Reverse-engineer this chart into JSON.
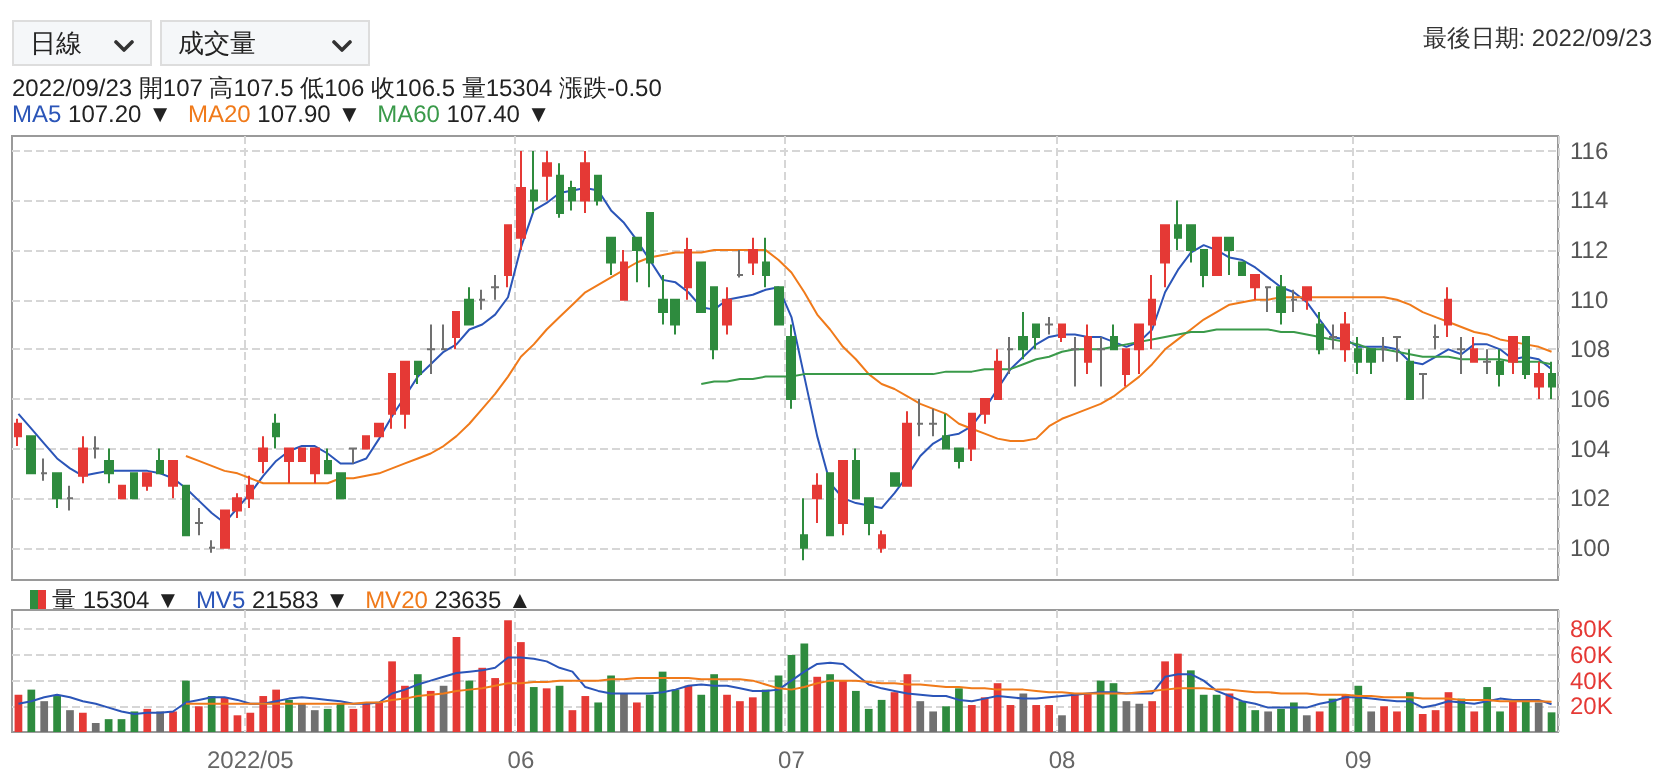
{
  "chart_data": [
    {
      "type": "candlestick",
      "subtitle": "2022/09/23 開107 高107.5 低106 收106.5 量15304 漲跌-0.50",
      "annotations": [
        "日線",
        "成交量",
        "最後日期: 2022/09/23",
        "107.20 ▼",
        "107.90 ▼",
        "107.40 ▼"
      ],
      "categories": [
        null,
        null,
        null,
        null,
        null,
        null,
        null,
        null,
        null,
        null,
        null,
        null,
        null,
        null,
        null,
        null,
        null,
        null,
        "2022/05",
        null,
        null,
        null,
        null,
        null,
        null,
        null,
        null,
        null,
        null,
        null,
        null,
        null,
        null,
        null,
        null,
        null,
        null,
        null,
        null,
        "06",
        null,
        null,
        null,
        null,
        null,
        null,
        null,
        null,
        null,
        null,
        null,
        null,
        null,
        null,
        null,
        null,
        null,
        null,
        null,
        null,
        "07",
        null,
        null,
        null,
        null,
        null,
        null,
        null,
        null,
        null,
        null,
        null,
        null,
        null,
        null,
        null,
        null,
        null,
        null,
        null,
        null,
        "08",
        null,
        null,
        null,
        null,
        null,
        null,
        null,
        null,
        null,
        null,
        null,
        null,
        null,
        null,
        null,
        null,
        null,
        null,
        null,
        null,
        null,
        null,
        "09",
        null,
        null,
        null,
        null,
        null,
        null,
        null,
        null,
        null,
        null,
        null,
        null,
        null,
        null,
        null
      ],
      "ylim": [
        98.7,
        116.6
      ],
      "yticks": [
        100,
        102,
        104,
        106,
        108,
        110,
        112,
        114,
        116
      ],
      "grid": true,
      "legend": "top left",
      "tick_labels": "y",
      "series": [
        {
          "ohlc": [
            [
              104.5,
              105.2,
              104.1,
              105
            ],
            [
              104.5,
              104.5,
              103,
              103
            ],
            [
              103,
              103.6,
              102.7,
              103
            ],
            [
              103,
              103,
              101.6,
              102
            ],
            [
              102,
              102.5,
              101.5,
              102
            ],
            [
              102.9,
              104.5,
              102.6,
              104
            ],
            [
              104,
              104.5,
              103.6,
              104
            ],
            [
              103.5,
              104,
              102.6,
              103
            ],
            [
              102,
              102.5,
              102,
              102.5
            ],
            [
              103,
              103,
              102,
              102
            ],
            [
              102.5,
              103,
              102.3,
              103
            ],
            [
              103.5,
              104,
              103,
              103
            ],
            [
              102.5,
              103.5,
              102,
              103.5
            ],
            [
              102.5,
              102.5,
              100.5,
              100.5
            ],
            [
              101,
              101.6,
              100.5,
              101
            ],
            [
              100,
              100.3,
              99.8,
              100
            ],
            [
              100,
              101.5,
              100,
              101.5
            ],
            [
              101.5,
              102.2,
              101.2,
              102
            ],
            [
              102,
              102.9,
              101.6,
              102.5
            ],
            [
              103.5,
              104.5,
              103,
              104
            ],
            [
              105,
              105.4,
              104,
              104.5
            ],
            [
              103.5,
              104,
              102.6,
              104
            ],
            [
              103.5,
              104,
              103.5,
              104
            ],
            [
              103,
              104,
              102.6,
              104
            ],
            [
              103.5,
              104,
              103,
              103
            ],
            [
              103,
              103,
              102,
              102
            ],
            [
              104,
              104,
              103.4,
              104
            ],
            [
              104,
              104.5,
              104,
              104.5
            ],
            [
              104.5,
              105,
              104.5,
              105
            ],
            [
              105.4,
              107,
              104.8,
              107
            ],
            [
              105.4,
              107.5,
              104.8,
              107.5
            ],
            [
              107.5,
              107.5,
              106.6,
              107
            ],
            [
              108,
              109,
              107,
              108
            ],
            [
              108,
              109,
              108,
              108
            ],
            [
              108.5,
              109.5,
              108,
              109.5
            ],
            [
              110,
              110.5,
              109,
              109
            ],
            [
              110,
              110.4,
              109.6,
              110
            ],
            [
              110.5,
              111,
              110,
              110.5
            ],
            [
              111,
              113,
              110.5,
              113
            ],
            [
              112.5,
              116,
              112,
              114.5
            ],
            [
              114.4,
              116,
              113.5,
              114
            ],
            [
              115,
              116,
              114,
              115.5
            ],
            [
              115,
              115.5,
              113.3,
              113.5
            ],
            [
              114.5,
              114.8,
              113.6,
              114
            ],
            [
              114,
              116,
              113.5,
              115.5
            ],
            [
              115,
              115,
              113.8,
              114
            ],
            [
              112.5,
              112.5,
              111,
              111.5
            ],
            [
              110,
              112,
              110,
              111.5
            ],
            [
              112.5,
              112.5,
              110.7,
              112
            ],
            [
              113.5,
              113.5,
              110.5,
              111.5
            ],
            [
              110,
              111,
              109,
              109.5
            ],
            [
              110,
              110,
              108.6,
              109
            ],
            [
              110.5,
              112.5,
              110,
              112
            ],
            [
              111.5,
              111.5,
              109.5,
              109.5
            ],
            [
              110.5,
              110.5,
              107.6,
              108
            ],
            [
              109,
              110.5,
              108.6,
              110
            ],
            [
              111,
              112,
              110.9,
              111
            ],
            [
              111.5,
              112.5,
              111,
              112
            ],
            [
              111.5,
              112.5,
              110.5,
              111
            ],
            [
              110.5,
              110.5,
              109,
              109
            ],
            [
              108.5,
              109,
              105.6,
              106
            ],
            [
              100.5,
              102,
              99.5,
              100
            ],
            [
              102,
              103,
              101,
              102.5
            ],
            [
              103,
              103,
              100.5,
              100.5
            ],
            [
              101,
              103.5,
              100.5,
              103.5
            ],
            [
              103.5,
              104,
              102,
              102
            ],
            [
              102,
              102,
              100.5,
              101
            ],
            [
              100,
              100.7,
              99.8,
              100.5
            ],
            [
              103,
              103,
              102.5,
              102.5
            ],
            [
              102.5,
              105.5,
              102.5,
              105
            ],
            [
              105,
              106,
              104.5,
              105
            ],
            [
              105,
              105.6,
              104.5,
              105
            ],
            [
              104.5,
              105.4,
              104,
              104
            ],
            [
              104,
              104,
              103.2,
              103.5
            ],
            [
              104,
              105.4,
              103.5,
              105.4
            ],
            [
              105.4,
              106,
              105,
              106
            ],
            [
              106,
              108,
              106,
              107.5
            ],
            [
              108,
              108.5,
              107,
              108
            ],
            [
              108.5,
              109.5,
              107.6,
              108
            ],
            [
              109,
              109,
              108,
              108.5
            ],
            [
              109,
              109.3,
              108.6,
              109
            ],
            [
              108.5,
              109,
              108.3,
              109
            ],
            [
              108,
              108.5,
              106.5,
              108
            ],
            [
              107.5,
              109,
              107,
              108.5
            ],
            [
              108,
              108.5,
              106.5,
              108
            ],
            [
              108.5,
              109,
              108,
              108
            ],
            [
              107,
              108,
              106.5,
              108
            ],
            [
              108,
              109,
              107,
              109
            ],
            [
              109,
              111,
              108,
              110
            ],
            [
              111.5,
              113,
              110.5,
              113
            ],
            [
              113,
              114,
              112,
              112.5
            ],
            [
              113,
              113,
              111.5,
              112
            ],
            [
              112,
              112,
              110.5,
              111
            ],
            [
              111,
              112.5,
              111,
              112.5
            ],
            [
              112.5,
              112.5,
              111,
              112
            ],
            [
              111.5,
              111.5,
              111,
              111
            ],
            [
              110.5,
              111,
              110,
              111
            ],
            [
              110.5,
              110.5,
              109.5,
              110.5
            ],
            [
              110.5,
              111,
              109,
              109.5
            ],
            [
              110,
              110.4,
              109.5,
              110
            ],
            [
              110,
              110.5,
              109.6,
              110.5
            ],
            [
              109,
              109.5,
              107.8,
              108
            ],
            [
              108.5,
              109,
              108,
              108.5
            ],
            [
              108,
              109.5,
              107.5,
              109
            ],
            [
              108,
              108.5,
              107,
              107.5
            ],
            [
              108,
              108,
              107,
              107.5
            ],
            [
              108,
              108.5,
              107.5,
              108
            ],
            [
              108.5,
              108.5,
              107.5,
              108.5
            ],
            [
              107.5,
              108,
              106,
              106
            ],
            [
              107,
              107,
              106,
              107
            ],
            [
              108.5,
              109,
              108,
              108.5
            ],
            [
              109,
              110.5,
              108.5,
              110
            ],
            [
              108,
              108.5,
              107,
              108
            ],
            [
              107.5,
              108.5,
              107.5,
              108
            ],
            [
              107.5,
              108,
              107,
              107.5
            ],
            [
              107.5,
              108,
              106.5,
              107
            ],
            [
              107.5,
              108.5,
              107,
              108.5
            ],
            [
              108.5,
              108.5,
              106.8,
              107
            ],
            [
              106.5,
              107.5,
              106,
              107
            ],
            [
              107,
              107.5,
              106,
              106.5
            ]
          ],
          "colors": [
            "#e53935",
            "#2e8b3e",
            "#707070",
            "#2e8b3e",
            "#707070",
            "#e53935",
            "#707070",
            "#2e8b3e",
            "#e53935",
            "#2e8b3e",
            "#e53935",
            "#2e8b3e",
            "#e53935",
            "#2e8b3e",
            "#707070",
            "#707070",
            "#e53935",
            "#e53935",
            "#e53935",
            "#e53935",
            "#2e8b3e",
            "#e53935",
            "#e53935",
            "#e53935",
            "#2e8b3e",
            "#2e8b3e",
            "#707070",
            "#e53935",
            "#e53935",
            "#e53935",
            "#e53935",
            "#2e8b3e",
            "#707070",
            "#707070",
            "#e53935",
            "#2e8b3e",
            "#707070",
            "#707070",
            "#e53935",
            "#e53935",
            "#2e8b3e",
            "#e53935",
            "#2e8b3e",
            "#2e8b3e",
            "#e53935",
            "#2e8b3e",
            "#2e8b3e",
            "#e53935",
            "#2e8b3e",
            "#2e8b3e",
            "#2e8b3e",
            "#2e8b3e",
            "#e53935",
            "#2e8b3e",
            "#2e8b3e",
            "#e53935",
            "#707070",
            "#e53935",
            "#2e8b3e",
            "#2e8b3e",
            "#2e8b3e",
            "#2e8b3e",
            "#e53935",
            "#2e8b3e",
            "#e53935",
            "#2e8b3e",
            "#2e8b3e",
            "#e53935",
            "#2e8b3e",
            "#e53935",
            "#707070",
            "#707070",
            "#2e8b3e",
            "#2e8b3e",
            "#e53935",
            "#e53935",
            "#e53935",
            "#707070",
            "#2e8b3e",
            "#2e8b3e",
            "#707070",
            "#e53935",
            "#707070",
            "#e53935",
            "#707070",
            "#2e8b3e",
            "#e53935",
            "#e53935",
            "#e53935",
            "#e53935",
            "#2e8b3e",
            "#2e8b3e",
            "#2e8b3e",
            "#e53935",
            "#2e8b3e",
            "#2e8b3e",
            "#e53935",
            "#707070",
            "#2e8b3e",
            "#707070",
            "#e53935",
            "#2e8b3e",
            "#707070",
            "#e53935",
            "#2e8b3e",
            "#2e8b3e",
            "#707070",
            "#707070",
            "#2e8b3e",
            "#707070",
            "#707070",
            "#e53935",
            "#707070",
            "#e53935",
            "#707070",
            "#2e8b3e",
            "#e53935",
            "#2e8b3e",
            "#e53935",
            "#2e8b3e"
          ]
        },
        {
          "type": "line",
          "name": "MA5",
          "color": "#2b55b8",
          "values": [
            105.4,
            104.8,
            104.2,
            103.6,
            103.2,
            102.9,
            103.0,
            103.1,
            103.1,
            103.1,
            103.1,
            103.0,
            102.8,
            102.4,
            101.9,
            101.4,
            101.0,
            101.6,
            102.2,
            102.9,
            103.5,
            103.9,
            104.1,
            104.1,
            103.8,
            103.4,
            103.4,
            103.6,
            104.4,
            105.3,
            106.1,
            106.9,
            107.4,
            107.9,
            108.2,
            108.8,
            109.0,
            109.4,
            110.1,
            112.1,
            113.6,
            113.9,
            114.3,
            114.4,
            114.5,
            114.4,
            113.6,
            113.1,
            112.4,
            111.6,
            110.8,
            110.7,
            110.3,
            109.7,
            109.6,
            110.0,
            110.1,
            110.2,
            110.4,
            110.5,
            109.3,
            106.9,
            104.5,
            102.6,
            102.0,
            101.8,
            101.7,
            101.6,
            102.2,
            102.9,
            103.7,
            104.2,
            104.5,
            104.6,
            104.9,
            105.6,
            106.4,
            107.2,
            107.7,
            108.2,
            108.5,
            108.6,
            108.6,
            108.5,
            108.5,
            108.3,
            108.1,
            108.3,
            108.8,
            110.3,
            111.2,
            111.9,
            112.2,
            112.0,
            111.7,
            111.6,
            111.3,
            110.9,
            110.5,
            110.3,
            109.9,
            109.2,
            108.5,
            108.4,
            108.1,
            108.1,
            108.1,
            108.0,
            107.5,
            107.4,
            107.7,
            108.0,
            107.8,
            108.2,
            108.2,
            108.0,
            107.6,
            107.7,
            107.6,
            107.2
          ]
        },
        {
          "type": "line",
          "name": "MA20",
          "color": "#f07a1a",
          "values": [
            null,
            null,
            null,
            null,
            null,
            null,
            null,
            null,
            null,
            null,
            null,
            null,
            null,
            103.7,
            103.5,
            103.3,
            103.1,
            103.0,
            102.8,
            102.6,
            102.6,
            102.6,
            102.6,
            102.6,
            102.6,
            102.8,
            102.8,
            102.9,
            103.0,
            103.2,
            103.4,
            103.6,
            103.8,
            104.1,
            104.5,
            105.0,
            105.6,
            106.2,
            106.9,
            107.7,
            108.2,
            108.8,
            109.3,
            109.8,
            110.3,
            110.6,
            110.9,
            111.2,
            111.5,
            111.7,
            111.8,
            111.9,
            111.9,
            111.9,
            112.0,
            112.0,
            112.0,
            112.0,
            112.0,
            111.6,
            111.1,
            110.3,
            109.4,
            108.8,
            108.1,
            107.6,
            107.0,
            106.6,
            106.4,
            106.1,
            105.8,
            105.6,
            105.4,
            105.0,
            104.8,
            104.6,
            104.4,
            104.3,
            104.3,
            104.4,
            104.9,
            105.2,
            105.4,
            105.6,
            105.8,
            106.1,
            106.5,
            106.9,
            107.4,
            108.0,
            108.4,
            108.8,
            109.2,
            109.5,
            109.8,
            109.9,
            110.0,
            110.0,
            110.1,
            110.1,
            110.1,
            110.1,
            110.1,
            110.1,
            110.1,
            110.1,
            110.1,
            110.0,
            109.8,
            109.5,
            109.3,
            109.1,
            108.9,
            108.7,
            108.6,
            108.4,
            108.3,
            108.2,
            108.1,
            107.9
          ]
        },
        {
          "type": "line",
          "name": "MA60",
          "color": "#3a9a4a",
          "values": [
            null,
            null,
            null,
            null,
            null,
            null,
            null,
            null,
            null,
            null,
            null,
            null,
            null,
            null,
            null,
            null,
            null,
            null,
            null,
            null,
            null,
            null,
            null,
            null,
            null,
            null,
            null,
            null,
            null,
            null,
            null,
            null,
            null,
            null,
            null,
            null,
            null,
            null,
            null,
            null,
            null,
            null,
            null,
            null,
            null,
            null,
            null,
            null,
            null,
            null,
            null,
            null,
            null,
            106.6,
            106.7,
            106.7,
            106.8,
            106.8,
            106.9,
            106.9,
            106.9,
            107.0,
            107.0,
            107.0,
            107.0,
            107.0,
            107.0,
            107.0,
            107.0,
            107.0,
            107.0,
            107.0,
            107.1,
            107.1,
            107.1,
            107.2,
            107.2,
            107.2,
            107.4,
            107.6,
            107.7,
            107.9,
            108.0,
            108.0,
            108.0,
            108.1,
            108.2,
            108.3,
            108.4,
            108.5,
            108.6,
            108.7,
            108.7,
            108.8,
            108.8,
            108.8,
            108.8,
            108.8,
            108.7,
            108.7,
            108.6,
            108.5,
            108.4,
            108.3,
            108.2,
            108.0,
            108.0,
            107.9,
            107.8,
            107.7,
            107.7,
            107.7,
            107.6,
            107.6,
            107.6,
            107.6,
            107.5,
            107.5,
            107.5,
            107.4
          ]
        }
      ]
    },
    {
      "type": "bar",
      "annotations": [
        "15304 ▼",
        "21583 ▼",
        "23635 ▲"
      ],
      "categories": [
        null,
        null,
        null,
        null,
        null,
        null,
        null,
        null,
        null,
        null,
        null,
        null,
        null,
        null,
        null,
        null,
        null,
        null,
        "2022/05",
        null,
        null,
        null,
        null,
        null,
        null,
        null,
        null,
        null,
        null,
        null,
        null,
        null,
        null,
        null,
        null,
        null,
        null,
        null,
        null,
        "06",
        null,
        null,
        null,
        null,
        null,
        null,
        null,
        null,
        null,
        null,
        null,
        null,
        null,
        null,
        null,
        null,
        null,
        null,
        null,
        null,
        "07",
        null,
        null,
        null,
        null,
        null,
        null,
        null,
        null,
        null,
        null,
        null,
        null,
        null,
        null,
        null,
        null,
        null,
        null,
        null,
        null,
        "08",
        null,
        null,
        null,
        null,
        null,
        null,
        null,
        null,
        null,
        null,
        null,
        null,
        null,
        null,
        null,
        null,
        null,
        null,
        null,
        null,
        null,
        null,
        "09",
        null,
        null,
        null,
        null,
        null,
        null,
        null,
        null,
        null,
        null,
        null,
        null,
        null,
        null,
        null
      ],
      "ylim": [
        0,
        95000
      ],
      "yticks": [
        {
          "value": 20000,
          "label": "20K"
        },
        {
          "value": 40000,
          "label": "40K"
        },
        {
          "value": 60000,
          "label": "60K"
        },
        {
          "value": 80000,
          "label": "80K"
        }
      ],
      "grid": true,
      "legend": "top left",
      "series": [
        {
          "name": "量",
          "values": [
            29000,
            33000,
            24000,
            28000,
            17000,
            15000,
            7000,
            10000,
            10000,
            16000,
            18000,
            16000,
            16000,
            40000,
            20000,
            28000,
            27000,
            13000,
            15000,
            28000,
            33000,
            25000,
            22000,
            17000,
            18000,
            22000,
            18000,
            22000,
            23000,
            55000,
            36000,
            45000,
            32000,
            36000,
            74000,
            40000,
            50000,
            42000,
            87000,
            70000,
            35000,
            34000,
            36000,
            17000,
            28000,
            23000,
            44000,
            30000,
            23000,
            29000,
            47000,
            33000,
            36000,
            29000,
            45000,
            29000,
            24000,
            27000,
            33000,
            44000,
            60000,
            69000,
            43000,
            45000,
            40000,
            32000,
            18000,
            25000,
            31000,
            45000,
            24000,
            16000,
            20000,
            34000,
            21000,
            27000,
            38000,
            21000,
            30000,
            21000,
            21000,
            13000,
            30000,
            30000,
            40000,
            38000,
            24000,
            22000,
            24000,
            55000,
            61000,
            48000,
            29000,
            29000,
            30000,
            24000,
            17000,
            16000,
            18000,
            23000,
            13000,
            16000,
            26000,
            29000,
            36000,
            16000,
            20000,
            16000,
            31000,
            14000,
            17000,
            31000,
            26000,
            16000,
            35000,
            16000,
            24000,
            24000,
            23000,
            15304
          ],
          "colors": [
            "#e53935",
            "#2e8b3e",
            "#707070",
            "#2e8b3e",
            "#707070",
            "#e53935",
            "#707070",
            "#2e8b3e",
            "#2e8b3e",
            "#2e8b3e",
            "#e53935",
            "#707070",
            "#e53935",
            "#2e8b3e",
            "#e53935",
            "#2e8b3e",
            "#e53935",
            "#e53935",
            "#e53935",
            "#e53935",
            "#e53935",
            "#2e8b3e",
            "#707070",
            "#707070",
            "#2e8b3e",
            "#2e8b3e",
            "#e53935",
            "#e53935",
            "#e53935",
            "#e53935",
            "#e53935",
            "#2e8b3e",
            "#e53935",
            "#707070",
            "#e53935",
            "#2e8b3e",
            "#e53935",
            "#e53935",
            "#e53935",
            "#e53935",
            "#2e8b3e",
            "#e53935",
            "#2e8b3e",
            "#e53935",
            "#e53935",
            "#2e8b3e",
            "#2e8b3e",
            "#707070",
            "#e53935",
            "#2e8b3e",
            "#2e8b3e",
            "#2e8b3e",
            "#e53935",
            "#2e8b3e",
            "#2e8b3e",
            "#e53935",
            "#e53935",
            "#e53935",
            "#2e8b3e",
            "#2e8b3e",
            "#2e8b3e",
            "#2e8b3e",
            "#e53935",
            "#2e8b3e",
            "#e53935",
            "#2e8b3e",
            "#2e8b3e",
            "#2e8b3e",
            "#e53935",
            "#e53935",
            "#707070",
            "#707070",
            "#2e8b3e",
            "#2e8b3e",
            "#e53935",
            "#e53935",
            "#e53935",
            "#e53935",
            "#707070",
            "#e53935",
            "#e53935",
            "#707070",
            "#e53935",
            "#e53935",
            "#2e8b3e",
            "#2e8b3e",
            "#707070",
            "#707070",
            "#e53935",
            "#e53935",
            "#e53935",
            "#2e8b3e",
            "#2e8b3e",
            "#2e8b3e",
            "#e53935",
            "#2e8b3e",
            "#2e8b3e",
            "#707070",
            "#2e8b3e",
            "#2e8b3e",
            "#707070",
            "#e53935",
            "#2e8b3e",
            "#e53935",
            "#2e8b3e",
            "#707070",
            "#e53935",
            "#e53935",
            "#2e8b3e",
            "#e53935",
            "#e53935",
            "#e53935",
            "#2e8b3e",
            "#e53935",
            "#2e8b3e",
            "#2e8b3e",
            "#e53935",
            "#2e8b3e",
            "#707070",
            "#2e8b3e"
          ]
        },
        {
          "type": "line",
          "name": "MV5",
          "color": "#2b55b8",
          "values": [
            22000,
            24000,
            27000,
            29000,
            27000,
            24000,
            22000,
            19000,
            16000,
            14000,
            15000,
            15000,
            16000,
            23000,
            25000,
            27000,
            27000,
            25000,
            22000,
            22000,
            24000,
            26000,
            27000,
            26000,
            25000,
            24000,
            22000,
            22000,
            23000,
            30000,
            33000,
            37000,
            40000,
            43000,
            46000,
            47000,
            48000,
            50000,
            58000,
            58000,
            57000,
            55000,
            50000,
            47000,
            35000,
            32000,
            30000,
            30000,
            30000,
            30000,
            31000,
            33000,
            36000,
            37000,
            36000,
            36000,
            34000,
            32000,
            32000,
            33000,
            40000,
            47000,
            53000,
            54000,
            53000,
            45000,
            37000,
            34000,
            32000,
            30000,
            29000,
            28000,
            28000,
            25000,
            24000,
            26000,
            28000,
            27000,
            26000,
            26000,
            27000,
            28000,
            29000,
            30000,
            31000,
            31000,
            30000,
            30000,
            30000,
            43000,
            45000,
            45000,
            40000,
            32000,
            28000,
            24000,
            22000,
            19000,
            19000,
            19000,
            19000,
            22000,
            24000,
            27000,
            27000,
            26000,
            25000,
            24000,
            24000,
            19000,
            21000,
            24000,
            23000,
            22000,
            24000,
            26000,
            25000,
            25000,
            25000,
            21583
          ]
        },
        {
          "type": "line",
          "name": "MV20",
          "color": "#f07a1a",
          "values": [
            null,
            null,
            null,
            null,
            null,
            null,
            null,
            null,
            null,
            null,
            null,
            null,
            null,
            22000,
            22000,
            22000,
            22000,
            22000,
            22000,
            22000,
            22000,
            22000,
            22000,
            22000,
            22000,
            22000,
            22000,
            23000,
            23000,
            25000,
            26000,
            28000,
            29000,
            30000,
            32000,
            33000,
            34000,
            36000,
            38000,
            38000,
            39000,
            39000,
            40000,
            40000,
            40000,
            40000,
            41000,
            41000,
            42000,
            42000,
            42000,
            42000,
            42000,
            41000,
            41000,
            41000,
            41000,
            40000,
            37000,
            34000,
            33000,
            35000,
            38000,
            40000,
            40000,
            40000,
            39000,
            38000,
            38000,
            37000,
            37000,
            36000,
            35000,
            35000,
            34000,
            34000,
            33000,
            33000,
            33000,
            32000,
            31000,
            31000,
            30000,
            30000,
            30000,
            30000,
            30000,
            31000,
            32000,
            33000,
            34000,
            34000,
            34000,
            33000,
            33000,
            32000,
            31000,
            31000,
            30000,
            30000,
            30000,
            29000,
            29000,
            29000,
            28000,
            28000,
            27000,
            27000,
            27000,
            26000,
            26000,
            26000,
            25000,
            25000,
            25000,
            24000,
            24000,
            24000,
            24000,
            23635
          ]
        }
      ]
    }
  ]
}
